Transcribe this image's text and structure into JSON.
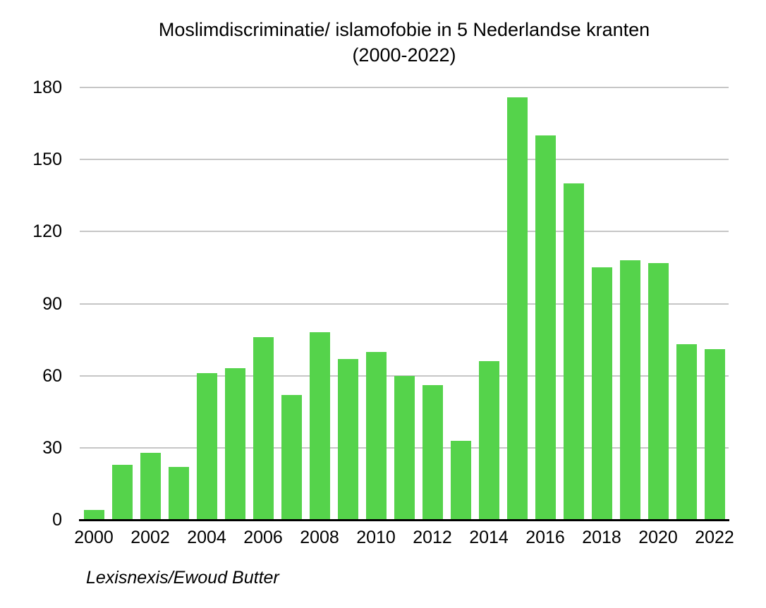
{
  "title": {
    "line1": "Moslimdiscriminatie/ islamofobie in 5 Nederlandse kranten",
    "line2": "(2000-2022)"
  },
  "source": "Lexisnexis/Ewoud Butter",
  "chart_data": {
    "type": "bar",
    "title": "Moslimdiscriminatie/ islamofobie in 5 Nederlandse kranten (2000-2022)",
    "categories": [
      2000,
      2001,
      2002,
      2003,
      2004,
      2005,
      2006,
      2007,
      2008,
      2009,
      2010,
      2011,
      2012,
      2013,
      2014,
      2015,
      2016,
      2017,
      2018,
      2019,
      2020,
      2021,
      2022
    ],
    "values": [
      4,
      23,
      28,
      22,
      61,
      63,
      76,
      52,
      78,
      67,
      70,
      60,
      56,
      33,
      66,
      176,
      160,
      140,
      105,
      108,
      107,
      73,
      71
    ],
    "xlabel": "",
    "ylabel": "",
    "ylim": [
      0,
      180
    ],
    "y_ticks": [
      0,
      30,
      60,
      90,
      120,
      150,
      180
    ],
    "x_tick_years": [
      2000,
      2002,
      2004,
      2006,
      2008,
      2010,
      2012,
      2014,
      2016,
      2018,
      2020,
      2022
    ],
    "grid": true,
    "legend": "none",
    "bar_color": "#55d34b",
    "gridline_color": "#c6c6c6",
    "axis_line_color": "#000000",
    "text_color": "#000000"
  }
}
